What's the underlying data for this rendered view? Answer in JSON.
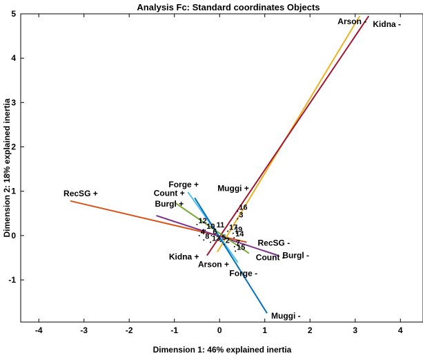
{
  "chart_data": {
    "type": "scatter",
    "title": "Analysis Fc: Standard coordinates Objects",
    "xlabel": "Dimension 1: 46% explained inertia",
    "ylabel": "Dimension 2: 18% explained inertia",
    "xlim": [
      -4.4,
      4.5
    ],
    "ylim": [
      -1.95,
      5
    ],
    "xticks": [
      -4,
      -3,
      -2,
      -1,
      0,
      1,
      2,
      3,
      4
    ],
    "yticks": [
      -1,
      0,
      1,
      2,
      3,
      4,
      5
    ],
    "xtick_labels": [
      "-4",
      "-3",
      "-2",
      "-1",
      "0",
      "1",
      "2",
      "3",
      "4"
    ],
    "ytick_labels": [
      "-1",
      "0",
      "1",
      "2",
      "3",
      "4",
      "5"
    ],
    "grid": false,
    "variables": [
      {
        "name": "Arson",
        "color": "#EDB120",
        "plus": {
          "label": "Arson +",
          "x": -0.05,
          "y": -0.37
        },
        "minus": {
          "label": "Arson -",
          "x": 3.1,
          "y": 4.95
        }
      },
      {
        "name": "Kidna",
        "color": "#A2142F",
        "plus": {
          "label": "Kidna +",
          "x": -0.28,
          "y": -0.45
        },
        "minus": {
          "label": "Kidna -",
          "x": 3.3,
          "y": 4.95
        }
      },
      {
        "name": "RecSG",
        "color": "#D95319",
        "plus": {
          "label": "RecSG +",
          "x": -3.3,
          "y": 0.78
        },
        "minus": {
          "label": "RecSG -",
          "x": 0.6,
          "y": -0.15
        }
      },
      {
        "name": "Burgl",
        "color": "#7E2F8E",
        "plus": {
          "label": "Burgl +",
          "x": -1.4,
          "y": 0.45
        },
        "minus": {
          "label": "Burgl -",
          "x": 1.3,
          "y": -0.45
        }
      },
      {
        "name": "Count",
        "color": "#77AC30",
        "plus": {
          "label": "Count +",
          "x": -1.0,
          "y": 0.75
        },
        "minus": {
          "label": "Count -",
          "x": 0.65,
          "y": -0.4
        }
      },
      {
        "name": "Forge",
        "color": "#4DBEEE",
        "plus": {
          "label": "Forge +",
          "x": -0.7,
          "y": 0.98
        },
        "minus": {
          "label": "Forge -",
          "x": 0.4,
          "y": -0.6
        }
      },
      {
        "name": "Muggi",
        "color": "#0072BD",
        "plus": {
          "label": "Muggi +",
          "x": -0.55,
          "y": 0.85
        },
        "minus": {
          "label": "Muggi -",
          "x": 1.05,
          "y": -1.75
        }
      }
    ],
    "objects": [
      {
        "label": "1",
        "x": 0.3,
        "y": 0.05
      },
      {
        "label": "2",
        "x": 0.1,
        "y": -0.2
      },
      {
        "label": "3",
        "x": 0.4,
        "y": 0.38
      },
      {
        "label": "4",
        "x": -0.45,
        "y": 0.0
      },
      {
        "label": "5",
        "x": 0.02,
        "y": -0.13
      },
      {
        "label": "6",
        "x": -0.18,
        "y": 0.0
      },
      {
        "label": "7",
        "x": 0.33,
        "y": -0.25
      },
      {
        "label": "8",
        "x": -0.35,
        "y": -0.1
      },
      {
        "label": "9",
        "x": 0.38,
        "y": 0.05
      },
      {
        "label": "10",
        "x": -0.32,
        "y": 0.12
      },
      {
        "label": "11",
        "x": -0.1,
        "y": 0.15
      },
      {
        "label": "12",
        "x": -0.5,
        "y": 0.25
      },
      {
        "label": "13",
        "x": -0.2,
        "y": -0.15
      },
      {
        "label": "14",
        "x": 0.32,
        "y": -0.05
      },
      {
        "label": "15",
        "x": 0.35,
        "y": -0.35
      },
      {
        "label": "16",
        "x": 0.4,
        "y": 0.55
      },
      {
        "label": "17",
        "x": 0.18,
        "y": 0.1
      }
    ]
  }
}
